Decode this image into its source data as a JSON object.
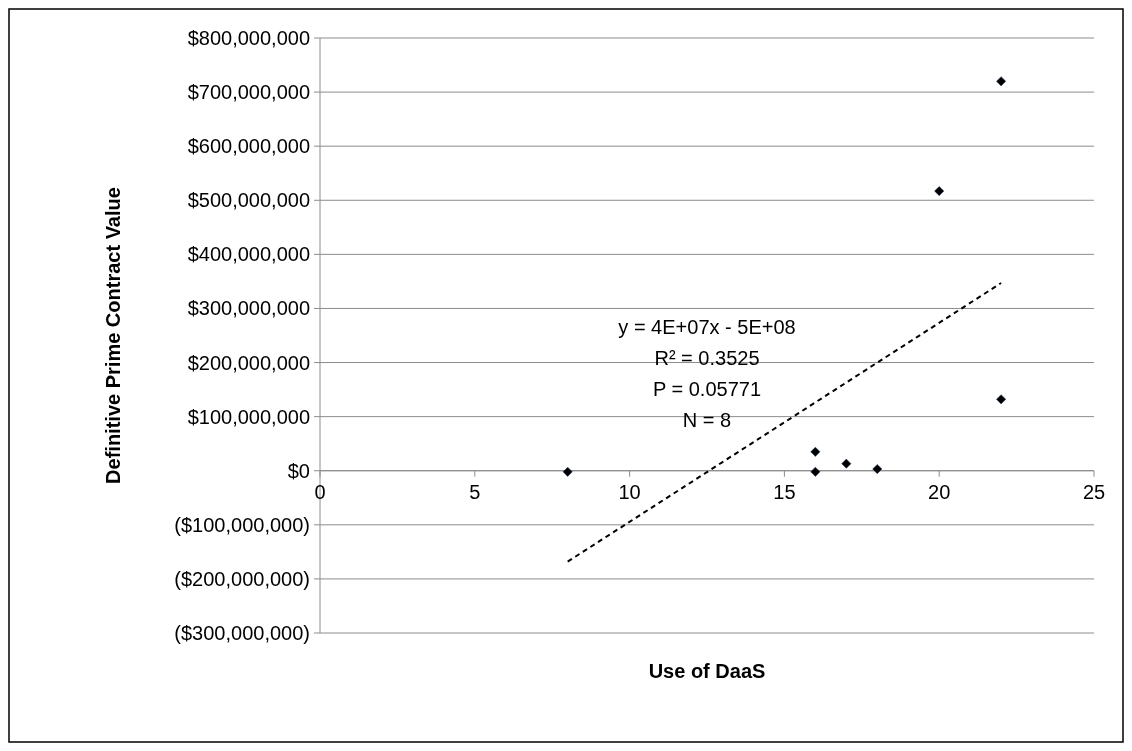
{
  "chart_data": {
    "type": "scatter",
    "xlabel": "Use of DaaS",
    "ylabel": "Definitive Prime Contract Value",
    "xlim": [
      0,
      25
    ],
    "xticks": [
      0,
      5,
      10,
      15,
      20,
      25
    ],
    "ylim": [
      -300000000,
      800000000
    ],
    "yticks": [
      {
        "value": -300000000,
        "label": "($300,000,000)"
      },
      {
        "value": -200000000,
        "label": "($200,000,000)"
      },
      {
        "value": -100000000,
        "label": "($100,000,000)"
      },
      {
        "value": 0,
        "label": "$0"
      },
      {
        "value": 100000000,
        "label": "$100,000,000"
      },
      {
        "value": 200000000,
        "label": "$200,000,000"
      },
      {
        "value": 300000000,
        "label": "$300,000,000"
      },
      {
        "value": 400000000,
        "label": "$400,000,000"
      },
      {
        "value": 500000000,
        "label": "$500,000,000"
      },
      {
        "value": 600000000,
        "label": "$600,000,000"
      },
      {
        "value": 700000000,
        "label": "$700,000,000"
      },
      {
        "value": 800000000,
        "label": "$800,000,000"
      }
    ],
    "grid": "y",
    "marker": "diamond",
    "series": [
      {
        "color": "#000000",
        "x": [
          8,
          16,
          16,
          17,
          18,
          20,
          22,
          22
        ],
        "values": [
          -2000000,
          35000000,
          -2000000,
          13000000,
          3000000,
          517000000,
          720000000,
          132000000
        ]
      },
      {
        "type": "line",
        "color": "#000000",
        "line_style": "dashed",
        "marker": "none",
        "x": [
          8,
          22
        ],
        "values": [
          -168000000,
          347000000
        ]
      }
    ],
    "annotations": [
      "y = 4E+07x - 5E+08",
      "R² = 0.3525",
      "P = 0.05771",
      "N = 8"
    ]
  }
}
